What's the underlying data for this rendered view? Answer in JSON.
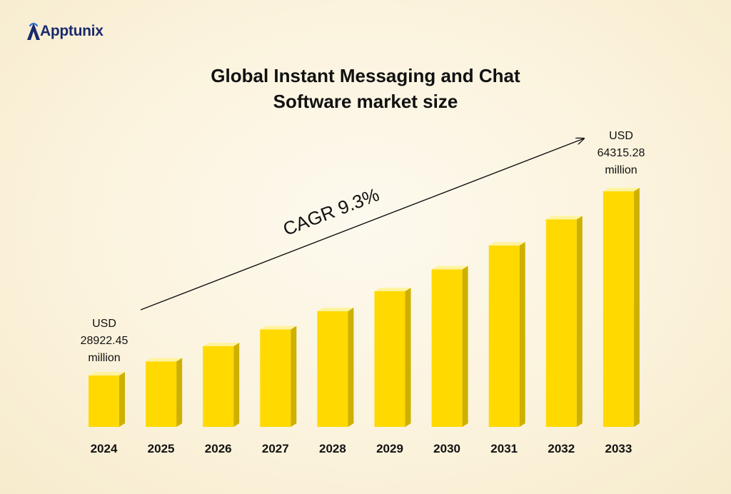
{
  "brand": {
    "name": "Apptunix",
    "logo_color": "#1a2a6c"
  },
  "title": {
    "line1": "Global Instant Messaging and Chat",
    "line2": "Software market size"
  },
  "annotations": {
    "start_value": [
      "USD",
      "28922.45",
      "million"
    ],
    "end_value": [
      "USD",
      "64315.28",
      "million"
    ],
    "cagr": "CAGR  9.3%"
  },
  "chart_data": {
    "type": "bar",
    "title": "Global Instant Messaging and Chat Software market size",
    "categories": [
      "2024",
      "2025",
      "2026",
      "2027",
      "2028",
      "2029",
      "2030",
      "2031",
      "2032",
      "2033"
    ],
    "values": [
      28922.45,
      31612.24,
      34552.18,
      37765.53,
      41277.73,
      45116.56,
      49312.4,
      53898.46,
      58911.02,
      64315.28
    ],
    "unit": "USD million",
    "ylim": [
      0,
      70000
    ],
    "grid": false,
    "legend": "none",
    "colors": {
      "bar_front": "#ffd900",
      "bar_side": "#cdb000",
      "bar_top": "#fff3a0"
    }
  }
}
